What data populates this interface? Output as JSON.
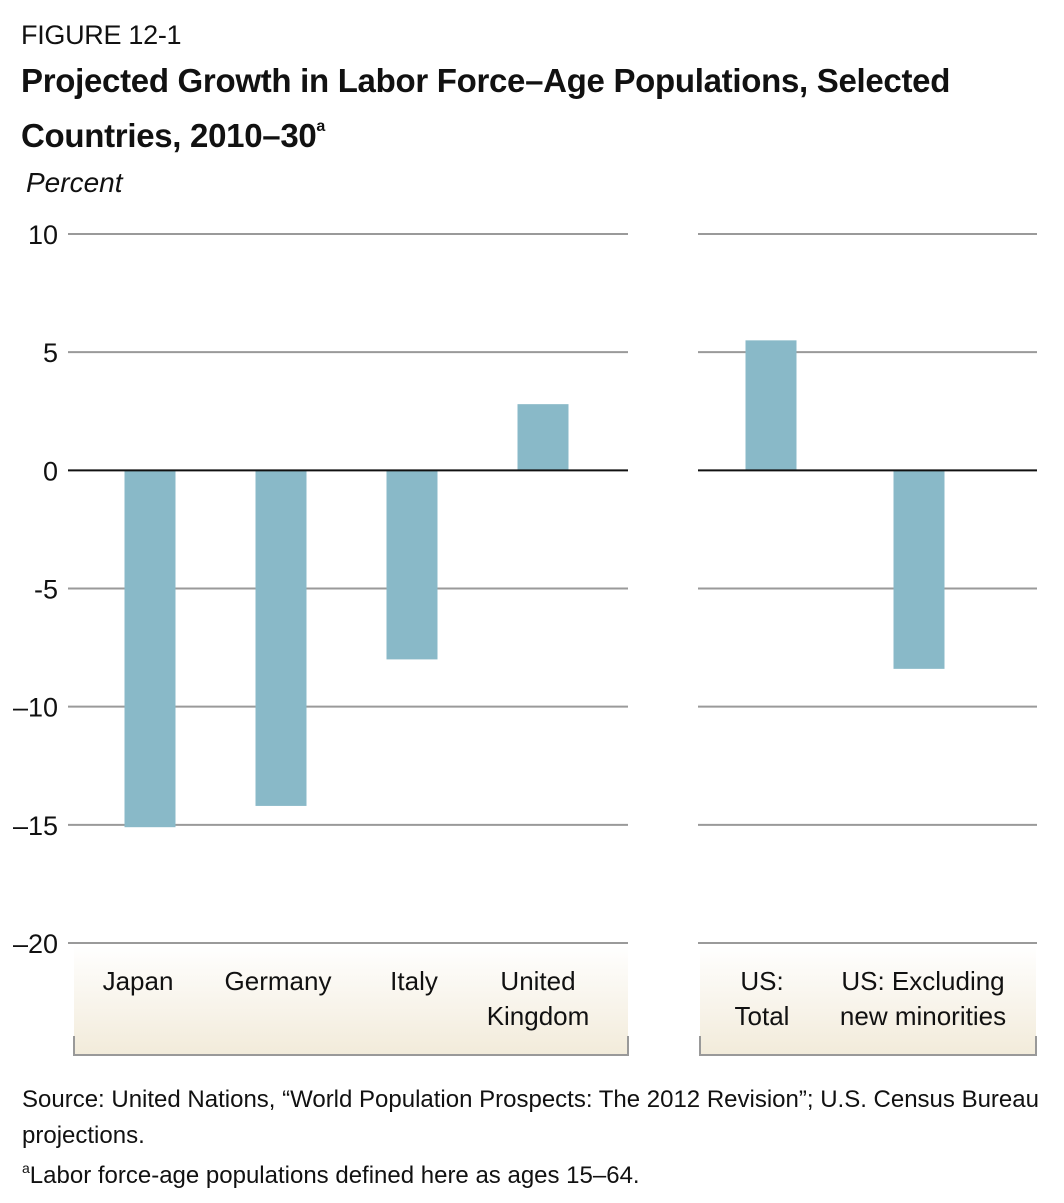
{
  "figure_label": "FIGURE 12-1",
  "title_main": "Projected Growth in Labor Force–Age Populations, Selected Countries, 2010–30",
  "title_superscript": "a",
  "source": "Source: United Nations, “World Population Prospects: The 2012 Revision”; U.S. Census Bureau projections.",
  "note_marker": "a",
  "note": "Labor force-age populations defined here as ages 15–64.",
  "colors": {
    "bar": "#89b9c8",
    "grid": "#9a9a9a",
    "zero_line": "#111111",
    "band_top": "#ffffff",
    "band_bottom": "#f2ebda",
    "bracket": "#999999"
  },
  "chart_data": {
    "type": "bar",
    "title": "Projected Growth in Labor Force–Age Populations, Selected Countries, 2010–30",
    "ylabel": "Percent",
    "xlabel": "",
    "ylim": [
      -20,
      10
    ],
    "yticks": [
      10,
      5,
      0,
      -5,
      -10,
      -15,
      -20
    ],
    "ytick_labels": [
      "10",
      "5",
      "0",
      "-5",
      "–10",
      "–15",
      "–20"
    ],
    "grid": true,
    "legend": "none",
    "panels": [
      {
        "name": "countries",
        "categories": [
          [
            "Japan"
          ],
          [
            "Germany"
          ],
          [
            "Italy"
          ],
          [
            "United",
            "Kingdom"
          ]
        ],
        "values": [
          -15.1,
          -14.2,
          -8.0,
          2.8
        ]
      },
      {
        "name": "united-states",
        "categories": [
          [
            "US:",
            "Total"
          ],
          [
            "US: Excluding",
            "new minorities"
          ]
        ],
        "values": [
          5.5,
          -8.4
        ]
      }
    ]
  }
}
